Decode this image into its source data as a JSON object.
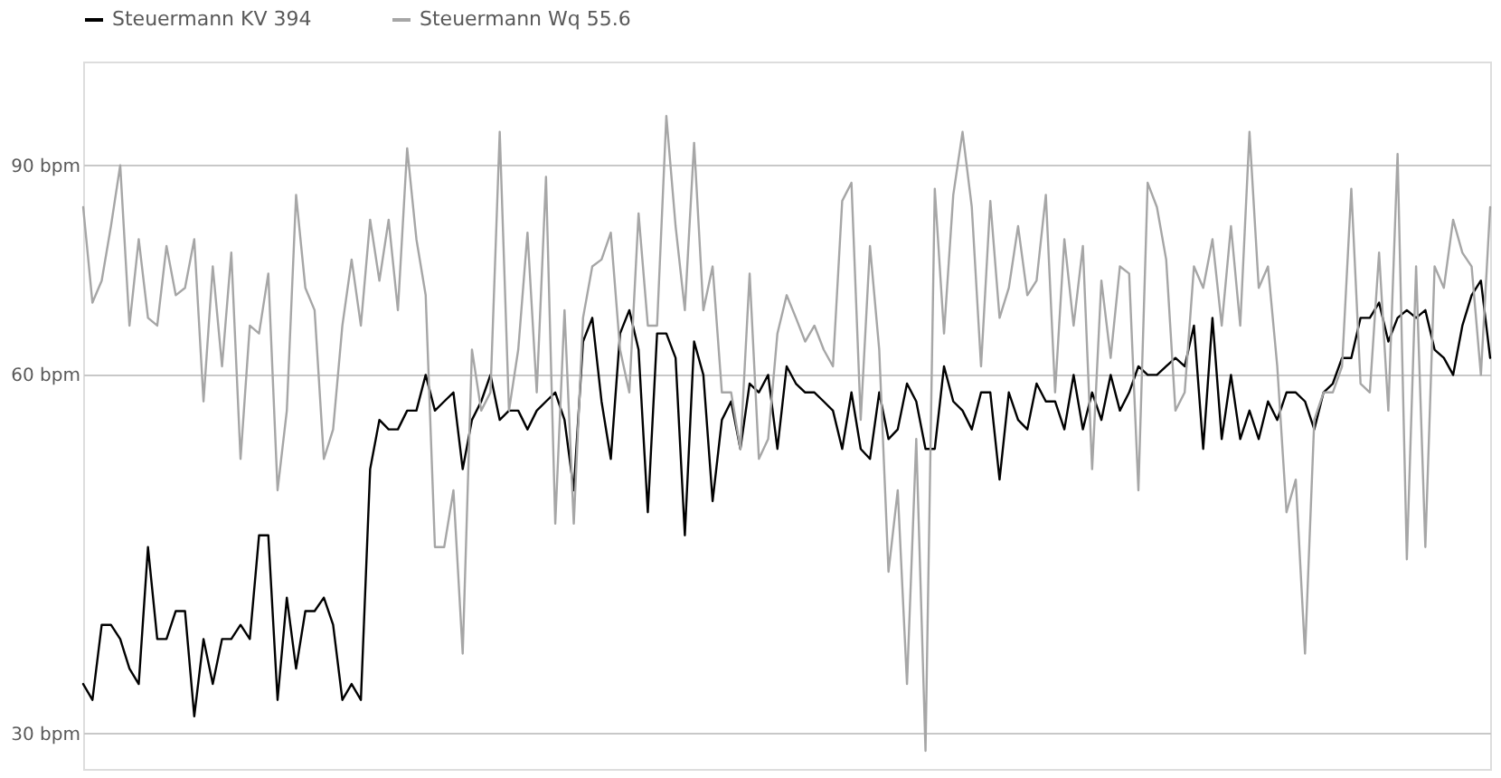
{
  "chart_data": {
    "type": "line",
    "log": "y",
    "grid": "y",
    "legend": "top",
    "tick_labels": "y",
    "marker": "none",
    "line_style": "solid",
    "categories": [
      null,
      null,
      null,
      null,
      null,
      null,
      null,
      null,
      null,
      null,
      null,
      null,
      null,
      null,
      null,
      null,
      null,
      null,
      null,
      null,
      null,
      null,
      null,
      null,
      null,
      null,
      null,
      null,
      null,
      null,
      null,
      null,
      null,
      null,
      null,
      null,
      null,
      null,
      null,
      null,
      null,
      null,
      null,
      null,
      null,
      null,
      null,
      null,
      null,
      null,
      null,
      null,
      null,
      null,
      null,
      null,
      null,
      null,
      null,
      null,
      null,
      null,
      null,
      null,
      null,
      null,
      null,
      null,
      null,
      null,
      null,
      null,
      null,
      null,
      null,
      null,
      null,
      null,
      null,
      null,
      null,
      null,
      null,
      null,
      null,
      null,
      null,
      null,
      null,
      null,
      null,
      null,
      null,
      null,
      null,
      null,
      null,
      null,
      null,
      null,
      null,
      null,
      null,
      null,
      null,
      null,
      null,
      null,
      null,
      null,
      null,
      null,
      null,
      null,
      null,
      null,
      null,
      null,
      null,
      null,
      null,
      null,
      null,
      null,
      null,
      null,
      null,
      null,
      null,
      null,
      null,
      null,
      null,
      null,
      null,
      null,
      null,
      null,
      null,
      null,
      null,
      null,
      null,
      null,
      null,
      null,
      null,
      null,
      null,
      null,
      null,
      null,
      null
    ],
    "ylim": [
      28,
      110
    ],
    "yticks": [
      {
        "value": 30,
        "label": "30 bpm"
      },
      {
        "value": 60,
        "label": "60 bpm"
      },
      {
        "value": 90,
        "label": "90 bpm"
      }
    ],
    "series": [
      {
        "name": "Steuermann KV 394",
        "color": "#000000",
        "values": [
          33,
          32,
          37,
          37,
          36,
          34,
          33,
          43,
          36,
          36,
          38,
          38,
          31,
          36,
          33,
          36,
          36,
          37,
          36,
          44,
          44,
          32,
          39,
          34,
          38,
          38,
          39,
          37,
          32,
          33,
          32,
          50,
          55,
          54,
          54,
          56,
          56,
          60,
          56,
          57,
          58,
          50,
          55,
          57,
          60,
          55,
          56,
          56,
          54,
          56,
          57,
          58,
          55,
          48,
          64,
          67,
          57,
          51,
          65,
          68,
          63,
          46,
          65,
          65,
          62,
          44,
          64,
          60,
          47,
          55,
          57,
          52,
          59,
          58,
          60,
          52,
          61,
          59,
          58,
          58,
          57,
          56,
          52,
          58,
          52,
          51,
          58,
          53,
          54,
          59,
          57,
          52,
          52,
          61,
          57,
          56,
          54,
          58,
          58,
          49,
          58,
          55,
          54,
          59,
          57,
          57,
          54,
          60,
          54,
          58,
          55,
          60,
          56,
          58,
          61,
          60,
          60,
          61,
          62,
          61,
          66,
          52,
          67,
          53,
          60,
          53,
          56,
          53,
          57,
          55,
          58,
          58,
          57,
          54,
          58,
          59,
          62,
          62,
          67,
          67,
          69,
          64,
          67,
          68,
          67,
          68,
          63,
          62,
          60,
          66,
          70,
          72,
          62
        ]
      },
      {
        "name": "Steuermann Wq 55.6",
        "color": "#a6a6a6",
        "values": [
          83,
          69,
          72,
          80,
          90,
          66,
          78,
          67,
          66,
          77,
          70,
          71,
          78,
          57,
          74,
          61,
          76,
          51,
          66,
          65,
          73,
          48,
          56,
          85,
          71,
          68,
          51,
          54,
          66,
          75,
          66,
          81,
          72,
          81,
          68,
          93,
          78,
          70,
          43,
          43,
          48,
          35,
          63,
          56,
          58,
          96,
          56,
          63,
          79,
          58,
          88,
          45,
          68,
          45,
          67,
          74,
          75,
          79,
          63,
          58,
          82,
          66,
          66,
          99,
          80,
          68,
          94,
          68,
          74,
          58,
          58,
          52,
          73,
          51,
          53,
          65,
          70,
          67,
          64,
          66,
          63,
          61,
          84,
          87,
          55,
          77,
          63,
          41,
          48,
          33,
          53,
          29,
          86,
          65,
          85,
          96,
          83,
          61,
          84,
          67,
          71,
          80,
          70,
          72,
          85,
          58,
          78,
          66,
          77,
          50,
          72,
          62,
          74,
          73,
          48,
          87,
          83,
          75,
          56,
          58,
          74,
          71,
          78,
          66,
          80,
          66,
          96,
          71,
          74,
          61,
          46,
          49,
          35,
          55,
          58,
          58,
          61,
          86,
          59,
          58,
          76,
          56,
          92,
          42,
          74,
          43,
          74,
          71,
          81,
          76,
          74,
          60,
          83
        ]
      }
    ]
  }
}
